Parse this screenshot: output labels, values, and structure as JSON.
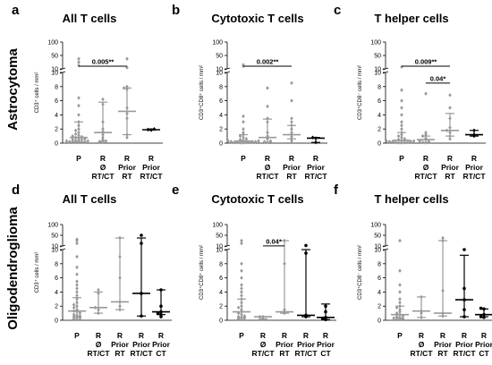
{
  "row_labels": [
    "Astrocytoma",
    "Oligodendroglioma"
  ],
  "colors": {
    "gray": "#999999",
    "black": "#000000"
  },
  "chart_data": [
    {
      "type": "scatter",
      "panel_letter": "a",
      "title": "All T cells",
      "ylabel": "CD3⁺ cells / mm²",
      "axis": {
        "upper_ticks": [
          "100",
          "50",
          "10"
        ],
        "lower_ticks": [
          "10",
          "8",
          "6",
          "4",
          "2",
          "0"
        ],
        "ylim": [
          0,
          100
        ],
        "break_at": 10
      },
      "groups": [
        {
          "label": [
            "P"
          ],
          "color": "gray",
          "marker": "diamond",
          "median": 0.8,
          "q1": 0.2,
          "q3": 3.0,
          "points": [
            0.1,
            0.1,
            0.1,
            0.2,
            0.2,
            0.2,
            0.3,
            0.3,
            0.4,
            0.4,
            0.5,
            0.5,
            0.6,
            0.7,
            0.8,
            0.9,
            1.0,
            1.1,
            1.3,
            1.5,
            1.8,
            2.0,
            2.5,
            3.0,
            4.0,
            5.3,
            6.4,
            20,
            30,
            40
          ]
        },
        {
          "label": [
            "R",
            "Ø",
            "RT/CT"
          ],
          "color": "gray",
          "marker": "diamond",
          "median": 1.5,
          "q1": 0.3,
          "q3": 5.8,
          "points": [
            0.1,
            0.2,
            0.3,
            0.5,
            0.8,
            1.2,
            1.6,
            2.0,
            3.0,
            5.5,
            6.2
          ]
        },
        {
          "label": [
            "R",
            "Prior",
            "RT"
          ],
          "color": "gray",
          "marker": "diamond",
          "median": 4.5,
          "q1": 1.2,
          "q3": 7.8,
          "points": [
            0.8,
            1.2,
            3.5,
            4.2,
            5.0,
            7.6,
            7.8,
            8.0,
            14,
            40
          ]
        },
        {
          "label": [
            "R",
            "Prior",
            "RT/CT"
          ],
          "color": "black",
          "marker": "diamond",
          "median": 1.9,
          "q1": 1.85,
          "q3": 2.0,
          "points": [
            1.85,
            1.9,
            2.0
          ]
        }
      ],
      "brackets": [
        {
          "from": 0,
          "to": 2,
          "value": 18,
          "label": "0.005**"
        }
      ]
    },
    {
      "type": "scatter",
      "panel_letter": "b",
      "title": "Cytotoxic T cells",
      "ylabel": "CD3⁺CD8⁺ cells / mm²",
      "axis": {
        "upper_ticks": [
          "100",
          "50",
          "10"
        ],
        "lower_ticks": [
          "10",
          "8",
          "6",
          "4",
          "2",
          "0"
        ],
        "ylim": [
          0,
          100
        ],
        "break_at": 10
      },
      "groups": [
        {
          "label": [
            "P"
          ],
          "color": "gray",
          "marker": "diamond",
          "median": 0.3,
          "q1": 0.1,
          "q3": 1.2,
          "points": [
            0.05,
            0.05,
            0.1,
            0.1,
            0.1,
            0.1,
            0.2,
            0.2,
            0.2,
            0.3,
            0.3,
            0.4,
            0.5,
            0.6,
            0.8,
            1.0,
            1.2,
            1.5,
            2.0,
            3.0,
            3.8,
            18,
            22
          ]
        },
        {
          "label": [
            "R",
            "Ø",
            "RT/CT"
          ],
          "color": "gray",
          "marker": "diamond",
          "median": 0.8,
          "q1": 0.1,
          "q3": 3.4,
          "points": [
            0.1,
            0.2,
            0.3,
            0.6,
            1.0,
            1.5,
            3.0,
            3.5,
            5.2,
            7.8
          ]
        },
        {
          "label": [
            "R",
            "Prior",
            "RT"
          ],
          "color": "gray",
          "marker": "diamond",
          "median": 1.2,
          "q1": 0.6,
          "q3": 2.5,
          "points": [
            0.3,
            0.6,
            0.9,
            1.2,
            1.5,
            2.0,
            2.5,
            3.0,
            3.5,
            6.0,
            8.5
          ]
        },
        {
          "label": [
            "R",
            "Prior",
            "RT/CT"
          ],
          "color": "black",
          "marker": "diamond",
          "median": 0.7,
          "q1": 0.1,
          "q3": 0.8,
          "points": [
            0.1,
            0.7,
            0.8
          ]
        }
      ],
      "brackets": [
        {
          "from": 0,
          "to": 2,
          "value": 18,
          "label": "0.002**"
        }
      ]
    },
    {
      "type": "scatter",
      "panel_letter": "c",
      "title": "T helper cells",
      "ylabel": "CD3⁺CD8⁻ cells / mm²",
      "axis": {
        "upper_ticks": [
          "100",
          "50",
          "10"
        ],
        "lower_ticks": [
          "10",
          "8",
          "6",
          "4",
          "2",
          "0"
        ],
        "ylim": [
          0,
          100
        ],
        "break_at": 10
      },
      "groups": [
        {
          "label": [
            "P"
          ],
          "color": "gray",
          "marker": "diamond",
          "median": 0.4,
          "q1": 0.1,
          "q3": 1.5,
          "points": [
            0.05,
            0.05,
            0.1,
            0.1,
            0.1,
            0.2,
            0.2,
            0.2,
            0.3,
            0.3,
            0.4,
            0.5,
            0.6,
            0.8,
            1.0,
            1.2,
            1.5,
            2.0,
            2.5,
            3.0,
            4.0,
            5.0,
            6.0,
            7.5,
            16
          ]
        },
        {
          "label": [
            "R",
            "Ø",
            "RT/CT"
          ],
          "color": "gray",
          "marker": "diamond",
          "median": 0.5,
          "q1": 0.1,
          "q3": 1.0,
          "points": [
            0.05,
            0.1,
            0.2,
            0.3,
            0.5,
            0.7,
            1.0,
            1.2,
            1.5,
            7.0
          ]
        },
        {
          "label": [
            "R",
            "Prior",
            "RT"
          ],
          "color": "gray",
          "marker": "diamond",
          "median": 1.8,
          "q1": 1.0,
          "q3": 4.2,
          "points": [
            0.6,
            1.0,
            1.5,
            1.8,
            2.2,
            3.5,
            5.0,
            6.8
          ]
        },
        {
          "label": [
            "R",
            "Prior",
            "RT/CT"
          ],
          "color": "black",
          "marker": "diamond",
          "median": 1.2,
          "q1": 1.0,
          "q3": 1.8,
          "points": [
            1.0,
            1.2,
            1.8
          ]
        }
      ],
      "brackets": [
        {
          "from": 0,
          "to": 2,
          "value": 18,
          "label": "0.009**"
        },
        {
          "from": 1,
          "to": 2,
          "value": 8.5,
          "label": "0.04*"
        }
      ]
    },
    {
      "type": "scatter",
      "panel_letter": "d",
      "title": "All T cells",
      "ylabel": "CD3⁺ cells / mm²",
      "axis": {
        "upper_ticks": [
          "100",
          "50",
          "10"
        ],
        "lower_ticks": [
          "10",
          "8",
          "6",
          "4",
          "2",
          "0"
        ],
        "ylim": [
          0,
          100
        ],
        "break_at": 10
      },
      "groups": [
        {
          "label": [
            "P"
          ],
          "color": "gray",
          "marker": "diamond",
          "median": 1.3,
          "q1": 0.5,
          "q3": 3.2,
          "points": [
            0.1,
            0.2,
            0.3,
            0.4,
            0.5,
            0.6,
            0.7,
            0.8,
            1.0,
            1.2,
            1.3,
            1.5,
            1.8,
            2.0,
            2.2,
            2.5,
            3.0,
            3.5,
            4.0,
            4.5,
            5.0,
            5.5,
            6.5,
            7.5,
            9.0,
            20,
            30,
            35
          ]
        },
        {
          "label": [
            "R",
            "Ø",
            "RT/CT"
          ],
          "color": "gray",
          "marker": "diamond",
          "median": 1.8,
          "q1": 1.0,
          "q3": 4.0,
          "points": [
            1.0,
            1.5,
            1.8,
            3.8,
            4.3
          ]
        },
        {
          "label": [
            "R",
            "Prior",
            "RT"
          ],
          "color": "gray",
          "marker": "diamond",
          "median": 2.6,
          "q1": 1.5,
          "q3": 40,
          "points": [
            1.5,
            2.0,
            2.6,
            6.0,
            9.0,
            40
          ]
        },
        {
          "label": [
            "R",
            "Prior",
            "RT/CT"
          ],
          "color": "black",
          "marker": "circle",
          "median": 3.8,
          "q1": 0.6,
          "q3": 40,
          "points": [
            0.6,
            3.8,
            20,
            50
          ]
        },
        {
          "label": [
            "R",
            "Prior",
            "CT"
          ],
          "color": "black",
          "marker": "circle",
          "median": 1.2,
          "q1": 0.8,
          "q3": 4.3,
          "points": [
            0.5,
            0.8,
            1.0,
            1.2,
            2.0,
            4.3
          ]
        }
      ],
      "brackets": []
    },
    {
      "type": "scatter",
      "panel_letter": "e",
      "title": "Cytotoxic T cells",
      "ylabel": "CD3⁺CD8⁺ cells / mm²",
      "axis": {
        "upper_ticks": [
          "100",
          "50",
          "10"
        ],
        "lower_ticks": [
          "10",
          "8",
          "6",
          "4",
          "2",
          "0"
        ],
        "ylim": [
          0,
          100
        ],
        "break_at": 10
      },
      "groups": [
        {
          "label": [
            "P"
          ],
          "color": "gray",
          "marker": "diamond",
          "median": 1.2,
          "q1": 0.4,
          "q3": 3.0,
          "points": [
            0.1,
            0.2,
            0.3,
            0.4,
            0.5,
            0.6,
            0.8,
            1.0,
            1.2,
            1.5,
            1.8,
            2.0,
            2.5,
            3.0,
            3.5,
            4.0,
            4.5,
            5.0,
            6.0,
            7.0,
            8.0,
            20,
            30
          ]
        },
        {
          "label": [
            "R",
            "Ø",
            "RT/CT"
          ],
          "color": "gray",
          "marker": "diamond",
          "median": 0.5,
          "q1": 0.2,
          "q3": 0.5,
          "points": [
            0.2,
            0.5,
            0.5
          ]
        },
        {
          "label": [
            "R",
            "Prior",
            "RT"
          ],
          "color": "gray",
          "marker": "diamond",
          "median": 1.2,
          "q1": 1.0,
          "q3": 30,
          "points": [
            1.0,
            1.2,
            1.5,
            8.0,
            30
          ]
        },
        {
          "label": [
            "R",
            "Prior",
            "RT/CT"
          ],
          "color": "black",
          "marker": "circle",
          "median": 0.7,
          "q1": 0.5,
          "q3": 10,
          "points": [
            0.5,
            0.7,
            9.5,
            12
          ]
        },
        {
          "label": [
            "R",
            "Prior",
            "CT"
          ],
          "color": "black",
          "marker": "circle",
          "median": 0.4,
          "q1": 0.1,
          "q3": 2.3,
          "points": [
            0.1,
            0.3,
            0.4,
            1.2,
            2.0
          ]
        }
      ],
      "brackets": [
        {
          "from": 1,
          "to": 2,
          "value": 10.6,
          "label": "0.04*"
        }
      ]
    },
    {
      "type": "scatter",
      "panel_letter": "f",
      "title": "T helper cells",
      "ylabel": "CD3⁺CD8⁻ cells / mm²",
      "axis": {
        "upper_ticks": [
          "100",
          "50",
          "10"
        ],
        "lower_ticks": [
          "10",
          "8",
          "6",
          "4",
          "2",
          "0"
        ],
        "ylim": [
          0,
          100
        ],
        "break_at": 10
      },
      "groups": [
        {
          "label": [
            "P"
          ],
          "color": "gray",
          "marker": "diamond",
          "median": 0.8,
          "q1": 0.3,
          "q3": 2.0,
          "points": [
            0.1,
            0.1,
            0.2,
            0.3,
            0.4,
            0.5,
            0.6,
            0.8,
            1.0,
            1.2,
            1.5,
            1.8,
            2.0,
            2.5,
            3.0,
            4.0,
            5.0,
            7.0,
            30
          ]
        },
        {
          "label": [
            "R",
            "Ø",
            "RT/CT"
          ],
          "color": "gray",
          "marker": "diamond",
          "median": 1.3,
          "q1": 0.4,
          "q3": 3.3,
          "points": [
            0.4,
            1.0,
            1.3,
            3.3
          ]
        },
        {
          "label": [
            "R",
            "Prior",
            "RT"
          ],
          "color": "gray",
          "marker": "diamond",
          "median": 1.0,
          "q1": 0.6,
          "q3": 30,
          "points": [
            0.6,
            1.0,
            4.2,
            30,
            40
          ]
        },
        {
          "label": [
            "R",
            "Prior",
            "RT/CT"
          ],
          "color": "black",
          "marker": "circle",
          "median": 2.9,
          "q1": 0.5,
          "q3": 9.2,
          "points": [
            0.5,
            1.5,
            2.9,
            4.5,
            10
          ]
        },
        {
          "label": [
            "R",
            "Prior",
            "CT"
          ],
          "color": "black",
          "marker": "circle",
          "median": 0.8,
          "q1": 0.5,
          "q3": 1.6,
          "points": [
            0.4,
            0.5,
            0.8,
            1.6,
            1.7
          ]
        }
      ],
      "brackets": []
    }
  ]
}
